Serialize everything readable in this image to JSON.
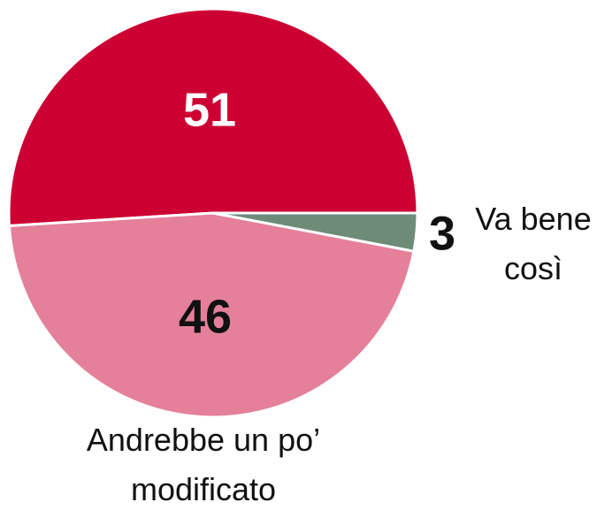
{
  "chart_data": {
    "type": "pie",
    "categories": [
      null,
      "Andrebbe un po’ modificato",
      "Va bene così"
    ],
    "values": [
      51,
      46,
      3
    ],
    "colors": [
      "#cc0033",
      "#e5809a",
      "#6e8b78"
    ]
  }
}
